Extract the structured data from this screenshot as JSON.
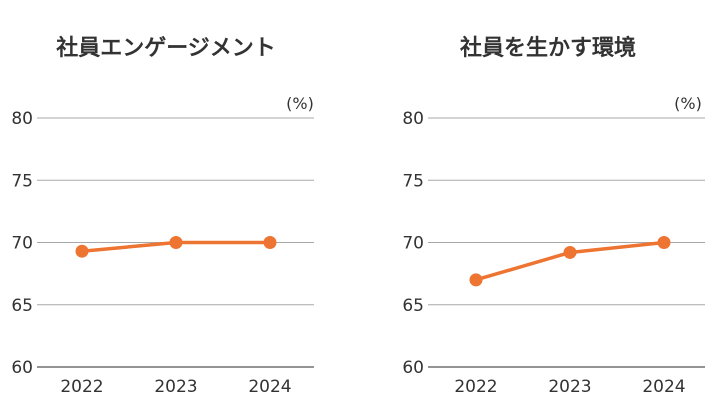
{
  "chart_data": [
    {
      "type": "line",
      "title": "社員エンゲージメント",
      "unit": "(%)",
      "categories": [
        "2022",
        "2023",
        "2024"
      ],
      "y_ticks": [
        "80",
        "75",
        "70",
        "65",
        "60"
      ],
      "ylim": [
        60,
        80
      ],
      "grid": true,
      "color": "#ed7431",
      "series": [
        {
          "values": [
            69.3,
            70,
            70
          ]
        }
      ]
    },
    {
      "type": "line",
      "title": "社員を生かす環境",
      "unit": "(%)",
      "categories": [
        "2022",
        "2023",
        "2024"
      ],
      "y_ticks": [
        "80",
        "75",
        "70",
        "65",
        "60"
      ],
      "ylim": [
        60,
        80
      ],
      "grid": true,
      "color": "#ed7431",
      "series": [
        {
          "values": [
            67,
            69.2,
            70
          ]
        }
      ]
    }
  ]
}
